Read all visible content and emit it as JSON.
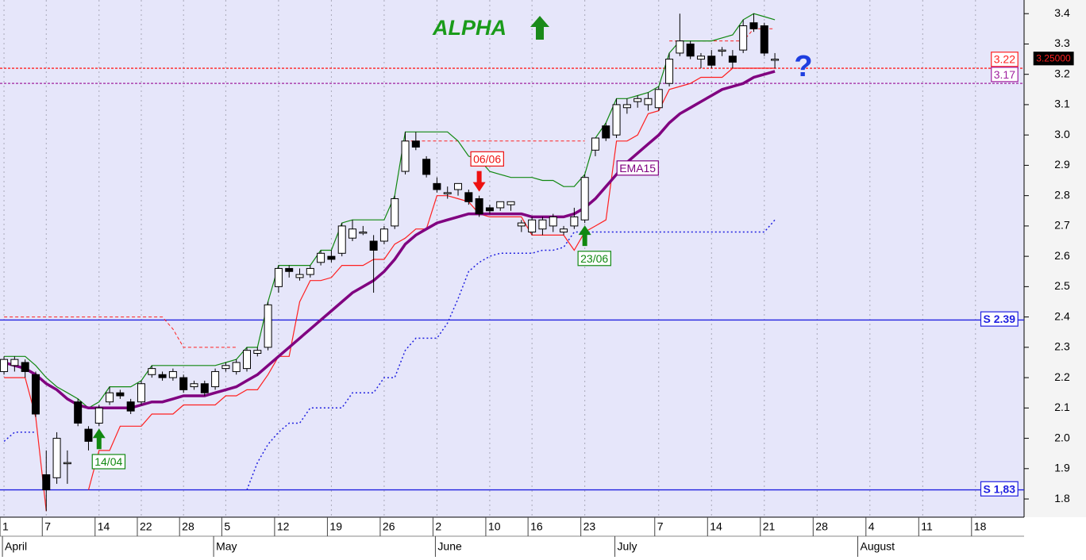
{
  "chart_data": {
    "type": "candlestick",
    "title": "ALPHA",
    "xlim": [
      -0.38,
      96.6
    ],
    "ylim": [
      1.74,
      3.445
    ],
    "xticks": [
      {
        "value": 0,
        "label": "1"
      },
      {
        "value": 4,
        "label": "7"
      },
      {
        "value": 9,
        "label": "14"
      },
      {
        "value": 13,
        "label": "22"
      },
      {
        "value": 17,
        "label": "28"
      },
      {
        "value": 21,
        "label": "5"
      },
      {
        "value": 26,
        "label": "12"
      },
      {
        "value": 31,
        "label": "19"
      },
      {
        "value": 36,
        "label": "26"
      },
      {
        "value": 41,
        "label": "2"
      },
      {
        "value": 46,
        "label": "10"
      },
      {
        "value": 50,
        "label": "16"
      },
      {
        "value": 55,
        "label": "23"
      },
      {
        "value": 62,
        "label": "7"
      },
      {
        "value": 67,
        "label": "14"
      },
      {
        "value": 72,
        "label": "21"
      },
      {
        "value": 77,
        "label": "28"
      },
      {
        "value": 82,
        "label": "4"
      },
      {
        "value": 87,
        "label": "11"
      },
      {
        "value": 92,
        "label": "18"
      }
    ],
    "months": [
      {
        "value": 0,
        "label": "April"
      },
      {
        "value": 20,
        "label": "May"
      },
      {
        "value": 41,
        "label": "June"
      },
      {
        "value": 58,
        "label": "July"
      },
      {
        "value": 81,
        "label": "August"
      }
    ],
    "yticks": [
      1.8,
      1.9,
      {
        "value": 2,
        "label": "2.0"
      },
      2.1,
      2.2,
      2.3,
      2.4,
      2.5,
      2.6,
      2.7,
      2.8,
      2.9,
      {
        "value": 3,
        "label": "3.0"
      },
      3.1,
      3.2,
      3.3,
      3.4
    ],
    "grid": "x",
    "x": [
      0,
      1,
      2,
      3,
      4,
      5,
      6,
      7,
      8,
      9,
      10,
      11,
      12,
      13,
      14,
      15,
      16,
      17,
      18,
      19,
      20,
      21,
      22,
      23,
      24,
      25,
      26,
      27,
      28,
      29,
      30,
      31,
      32,
      33,
      34,
      35,
      36,
      37,
      38,
      39,
      40,
      41,
      42,
      43,
      44,
      45,
      46,
      47,
      48,
      49,
      50,
      51,
      52,
      53,
      54,
      55,
      56,
      57,
      58,
      59,
      60,
      61,
      62,
      63,
      64,
      65,
      66,
      67,
      68,
      69,
      70,
      71,
      72,
      73
    ],
    "candles": {
      "open": [
        2.22,
        2.24,
        2.25,
        2.21,
        1.88,
        1.87,
        1.92,
        2.12,
        2.03,
        2.05,
        2.12,
        2.15,
        2.12,
        2.12,
        2.21,
        2.21,
        2.2,
        2.2,
        2.17,
        2.18,
        2.17,
        2.23,
        2.22,
        2.23,
        2.28,
        2.3,
        2.5,
        2.56,
        2.53,
        2.54,
        2.58,
        2.6,
        2.61,
        2.66,
        2.68,
        2.65,
        2.65,
        2.7,
        2.88,
        2.98,
        2.92,
        2.84,
        2.81,
        2.82,
        2.81,
        2.79,
        2.76,
        2.76,
        2.77,
        2.7,
        2.68,
        2.69,
        2.7,
        2.68,
        2.7,
        2.72,
        2.95,
        3.03,
        3.0,
        3.09,
        3.11,
        3.1,
        3.09,
        3.17,
        3.27,
        3.3,
        3.25,
        3.26,
        3.28,
        3.26,
        3.28,
        3.37,
        3.36,
        3.25
      ],
      "high": [
        2.27,
        2.27,
        2.26,
        2.22,
        1.96,
        2.02,
        1.96,
        2.13,
        2.04,
        2.11,
        2.17,
        2.16,
        2.13,
        2.19,
        2.24,
        2.22,
        2.23,
        2.21,
        2.19,
        2.19,
        2.23,
        2.25,
        2.26,
        2.3,
        2.3,
        2.45,
        2.57,
        2.57,
        2.56,
        2.57,
        2.62,
        2.62,
        2.71,
        2.72,
        2.7,
        2.67,
        2.7,
        2.8,
        3.01,
        3.01,
        2.93,
        2.86,
        2.83,
        2.84,
        2.82,
        2.8,
        2.77,
        2.78,
        2.78,
        2.72,
        2.73,
        2.73,
        2.74,
        2.7,
        2.76,
        2.87,
        2.99,
        3.04,
        3.12,
        3.12,
        3.13,
        3.14,
        3.16,
        3.27,
        3.4,
        3.31,
        3.27,
        3.28,
        3.29,
        3.28,
        3.38,
        3.4,
        3.37,
        3.27
      ],
      "low": [
        2.21,
        2.22,
        2.2,
        2.07,
        1.76,
        1.85,
        1.85,
        2.04,
        1.96,
        2.04,
        2.11,
        2.13,
        2.08,
        2.11,
        2.2,
        2.19,
        2.19,
        2.15,
        2.16,
        2.14,
        2.16,
        2.22,
        2.21,
        2.22,
        2.27,
        2.29,
        2.48,
        2.53,
        2.52,
        2.53,
        2.57,
        2.58,
        2.6,
        2.65,
        2.67,
        2.48,
        2.64,
        2.69,
        2.87,
        2.95,
        2.86,
        2.81,
        2.79,
        2.8,
        2.77,
        2.73,
        2.74,
        2.75,
        2.75,
        2.68,
        2.67,
        2.67,
        2.68,
        2.67,
        2.69,
        2.71,
        2.93,
        2.98,
        2.99,
        3.07,
        3.09,
        3.08,
        3.08,
        3.16,
        3.26,
        3.25,
        3.22,
        3.22,
        3.26,
        3.22,
        3.27,
        3.34,
        3.26,
        3.22
      ],
      "close": [
        2.26,
        2.26,
        2.22,
        2.08,
        1.83,
        2.0,
        1.92,
        2.05,
        1.99,
        2.1,
        2.15,
        2.14,
        2.09,
        2.18,
        2.23,
        2.2,
        2.22,
        2.16,
        2.18,
        2.15,
        2.22,
        2.24,
        2.25,
        2.29,
        2.29,
        2.44,
        2.56,
        2.55,
        2.54,
        2.56,
        2.61,
        2.59,
        2.7,
        2.69,
        2.68,
        2.62,
        2.69,
        2.79,
        2.98,
        2.96,
        2.87,
        2.82,
        2.81,
        2.84,
        2.78,
        2.74,
        2.75,
        2.78,
        2.78,
        2.71,
        2.72,
        2.72,
        2.73,
        2.69,
        2.73,
        2.86,
        2.99,
        2.99,
        3.1,
        3.1,
        3.12,
        3.12,
        3.15,
        3.25,
        3.31,
        3.26,
        3.26,
        3.23,
        3.28,
        3.24,
        3.36,
        3.35,
        3.27,
        3.25
      ]
    },
    "series": [
      {
        "color": "#2020e0",
        "style": "dotted",
        "width": 1.5,
        "values": [
          1.99,
          2.02,
          2.02,
          2.02,
          null,
          null,
          null,
          null,
          null,
          null,
          null,
          null,
          null,
          null,
          null,
          null,
          null,
          null,
          null,
          null,
          null,
          null,
          null,
          1.83,
          1.92,
          1.98,
          2.02,
          2.05,
          2.05,
          2.1,
          2.1,
          2.1,
          2.1,
          2.15,
          2.15,
          2.15,
          2.2,
          2.2,
          2.29,
          2.33,
          2.33,
          2.33,
          2.38,
          2.46,
          2.55,
          2.58,
          2.6,
          2.61,
          2.61,
          2.61,
          2.61,
          2.62,
          2.62,
          2.63,
          2.68,
          2.68,
          2.68,
          2.68,
          2.68,
          2.68,
          2.68,
          2.68,
          2.68,
          2.68,
          2.68,
          2.68,
          2.68,
          2.68,
          2.68,
          2.68,
          2.68,
          2.68,
          2.68,
          2.72
        ]
      },
      {
        "color": "#ff2020",
        "style": "dashed",
        "width": 1,
        "values": [
          2.4,
          2.4,
          2.4,
          2.4,
          2.4,
          2.4,
          2.4,
          2.4,
          2.4,
          2.4,
          2.4,
          2.4,
          2.4,
          2.4,
          2.4,
          2.4,
          2.36,
          2.3,
          2.3,
          2.3,
          2.3,
          2.3,
          2.3,
          null,
          null,
          null,
          null,
          null,
          null,
          null,
          null,
          null,
          null,
          null,
          null,
          null,
          null,
          null,
          2.98,
          2.98,
          2.98,
          2.98,
          2.98,
          2.98,
          2.98,
          2.98,
          2.98,
          2.98,
          2.98,
          2.98,
          2.98,
          2.98,
          2.98,
          2.98,
          2.98,
          2.98,
          null,
          null,
          null,
          null,
          null,
          null,
          null,
          3.31,
          3.31,
          3.31,
          3.31,
          3.31,
          3.31,
          3.31,
          3.31,
          3.35,
          3.35,
          3.35
        ]
      },
      {
        "color": "#ff2020",
        "style": "solid",
        "width": 1.2,
        "values": [
          2.2,
          2.2,
          2.2,
          2.07,
          1.76,
          null,
          null,
          null,
          1.83,
          1.96,
          1.96,
          2.04,
          2.04,
          2.04,
          2.08,
          2.08,
          2.08,
          2.11,
          2.11,
          2.11,
          2.11,
          2.14,
          2.14,
          2.16,
          2.16,
          2.21,
          2.27,
          2.27,
          2.45,
          2.52,
          2.52,
          2.53,
          2.57,
          2.57,
          2.57,
          2.59,
          2.59,
          2.64,
          2.66,
          2.69,
          2.69,
          2.8,
          2.8,
          2.79,
          2.78,
          2.74,
          2.73,
          2.73,
          2.73,
          2.73,
          2.67,
          2.67,
          2.67,
          2.67,
          2.62,
          2.68,
          2.7,
          2.72,
          2.98,
          2.98,
          3.0,
          3.07,
          3.08,
          3.15,
          3.16,
          3.17,
          3.19,
          3.19,
          3.19,
          3.22,
          3.22,
          3.22,
          3.22,
          3.22
        ]
      },
      {
        "color": "#118811",
        "style": "solid",
        "width": 1.2,
        "values": [
          2.27,
          2.27,
          2.27,
          2.24,
          2.2,
          2.17,
          2.15,
          2.13,
          2.1,
          2.12,
          2.17,
          2.17,
          2.17,
          2.19,
          2.24,
          2.24,
          2.24,
          2.24,
          2.24,
          2.24,
          2.24,
          2.25,
          2.26,
          2.3,
          2.3,
          2.45,
          2.57,
          2.57,
          2.57,
          2.57,
          2.62,
          2.62,
          2.71,
          2.72,
          2.72,
          2.72,
          2.72,
          2.8,
          3.01,
          3.01,
          3.01,
          3.01,
          3.01,
          2.98,
          2.93,
          2.92,
          2.88,
          2.87,
          2.86,
          2.86,
          2.86,
          2.85,
          2.85,
          2.83,
          2.83,
          2.87,
          2.99,
          3.04,
          3.12,
          3.12,
          3.13,
          3.14,
          3.16,
          3.27,
          3.31,
          3.31,
          3.31,
          3.31,
          3.32,
          3.33,
          3.38,
          3.4,
          3.39,
          3.38
        ]
      },
      {
        "name": "EMA15",
        "color": "#800080",
        "style": "solid",
        "width": 3.5,
        "values": [
          2.25,
          2.24,
          2.23,
          2.21,
          2.18,
          2.16,
          2.13,
          2.11,
          2.1,
          2.1,
          2.1,
          2.1,
          2.1,
          2.11,
          2.12,
          2.12,
          2.13,
          2.14,
          2.14,
          2.14,
          2.15,
          2.16,
          2.17,
          2.19,
          2.21,
          2.24,
          2.27,
          2.3,
          2.33,
          2.36,
          2.39,
          2.42,
          2.45,
          2.48,
          2.5,
          2.52,
          2.55,
          2.59,
          2.64,
          2.67,
          2.69,
          2.71,
          2.72,
          2.73,
          2.74,
          2.74,
          2.74,
          2.74,
          2.74,
          2.74,
          2.73,
          2.73,
          2.73,
          2.73,
          2.74,
          2.76,
          2.79,
          2.83,
          2.87,
          2.91,
          2.94,
          2.97,
          3.0,
          3.04,
          3.07,
          3.09,
          3.11,
          3.13,
          3.15,
          3.16,
          3.17,
          3.19,
          3.2,
          3.21
        ]
      }
    ],
    "levels": [
      {
        "value": 2.39,
        "label": "S 2.39"
      },
      {
        "value": 1.83,
        "label": "S 1,83"
      }
    ],
    "price_lines": [
      {
        "value": 3.22,
        "color": "#ff2020"
      },
      {
        "value": 3.17,
        "color": "#a020a0"
      }
    ],
    "last_price": {
      "value": 3.25,
      "label": "3.25000"
    },
    "signals": [
      {
        "label": "14/04",
        "direction": "up",
        "x": 9
      },
      {
        "label": "06/06",
        "direction": "down",
        "x": 45
      },
      {
        "label": "23/06",
        "direction": "up",
        "x": 55
      }
    ],
    "annotation": "?"
  }
}
